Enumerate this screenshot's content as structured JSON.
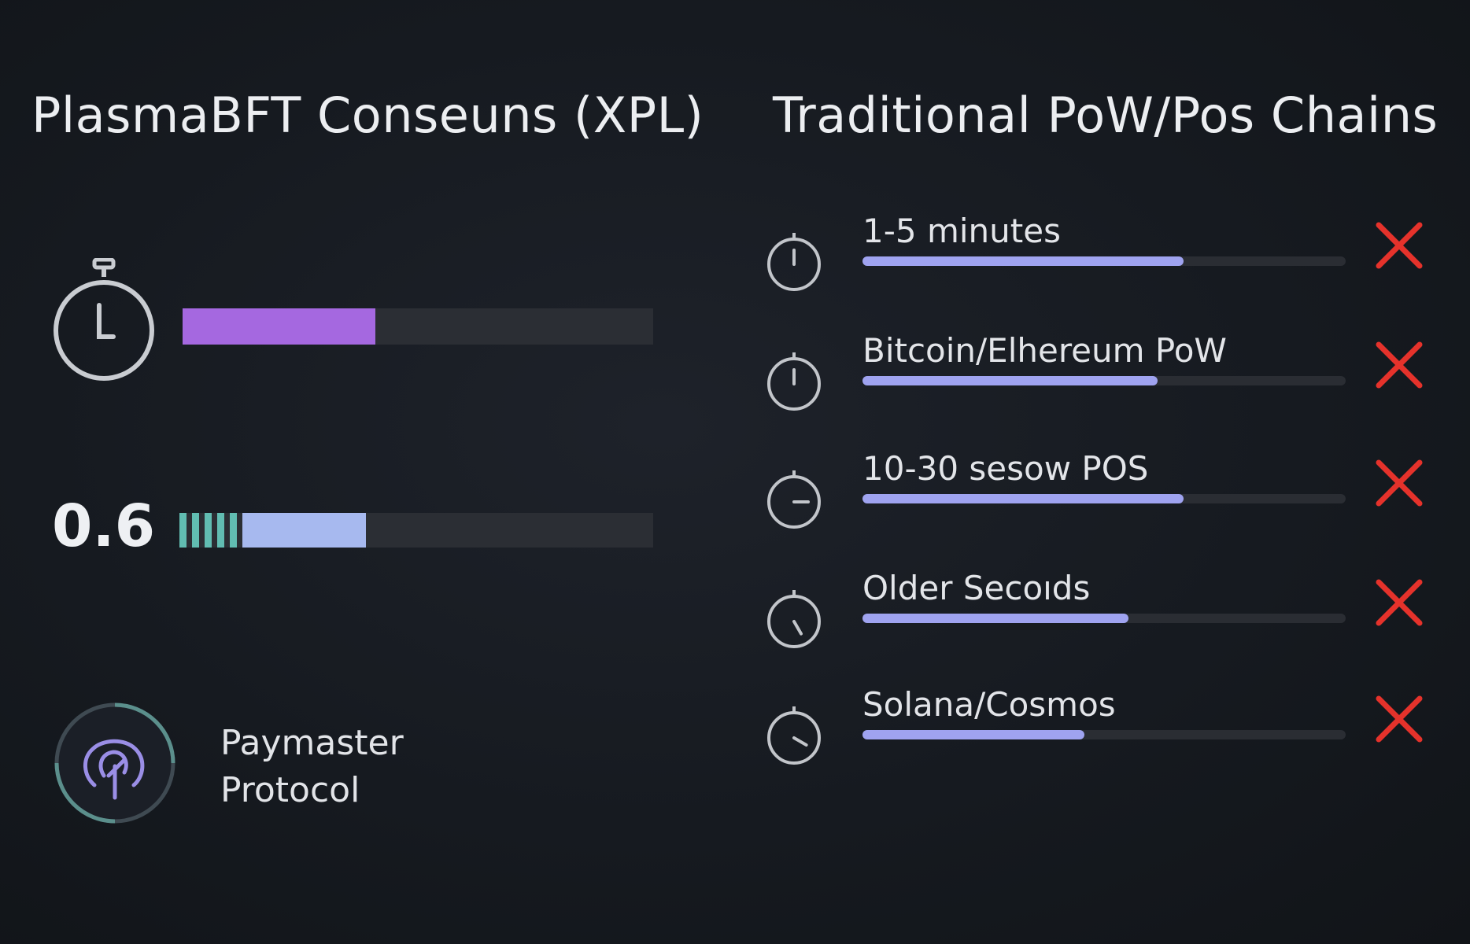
{
  "left": {
    "title": "PlasmaBFT Conseuns (XPL)",
    "speed_bar": {
      "fill_fraction": 0.41,
      "color": "#a568e0",
      "icon": "stopwatch-icon"
    },
    "fee": {
      "value": "0.6",
      "fill_fraction": 0.26,
      "color": "#a7b9ef",
      "stripe_color": "#61bdb2"
    },
    "paymaster": {
      "line1": "Paymaster",
      "line2": "Protocol",
      "icon": "paymaster-icon"
    }
  },
  "right": {
    "title": "Traditional PoW/Pos Chains",
    "rows": [
      {
        "label": "1-5 minutes",
        "fill_fraction": 0.665,
        "icon": "clock-icon",
        "status": "x-icon"
      },
      {
        "label": "Bitcoin/Elhereum PoW",
        "fill_fraction": 0.61,
        "icon": "clock-icon",
        "status": "x-icon"
      },
      {
        "label": "10-30 sesow POS",
        "fill_fraction": 0.665,
        "icon": "clock-icon",
        "status": "x-icon"
      },
      {
        "label": "Older Secoıds",
        "fill_fraction": 0.55,
        "icon": "clock-icon",
        "status": "x-icon"
      },
      {
        "label": "Solana/Cosmos",
        "fill_fraction": 0.46,
        "icon": "clock-icon",
        "status": "x-icon"
      }
    ],
    "x_color": "#e5322b",
    "bar_color": "#9fa3f0"
  }
}
